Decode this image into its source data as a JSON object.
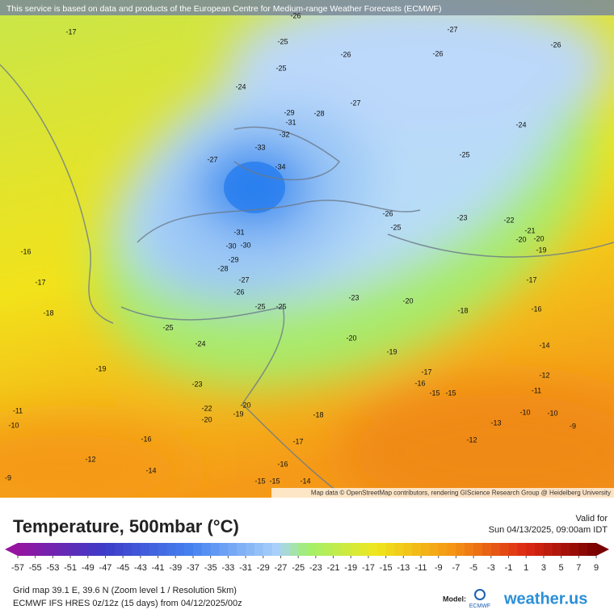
{
  "header": {
    "attribution": "This service is based on data and products of the European Centre for Medium-range Weather Forecasts (ECMWF)"
  },
  "map": {
    "credit": "Map data © OpenStreetMap contributors, rendering GIScience Research Group @ Heidelberg University",
    "contour_labels": [
      -26,
      -27,
      -17,
      -25,
      -26,
      -26,
      -26,
      -25,
      -24,
      -27,
      -29,
      -28,
      -31,
      -32,
      -24,
      -33,
      -27,
      -25,
      -34,
      -26,
      -25,
      -23,
      -22,
      -21,
      -20,
      -20,
      -19,
      -31,
      -30,
      -30,
      -29,
      -28,
      -16,
      -17,
      -27,
      -17,
      -26,
      -23,
      -20,
      -18,
      -16,
      -18,
      -25,
      -25,
      -25,
      -20,
      -24,
      -14,
      -19,
      -19,
      -17,
      -12,
      -16,
      -23,
      -11,
      -15,
      -15,
      -20,
      -22,
      -19,
      -18,
      -20,
      -11,
      -10,
      -10,
      -13,
      -10,
      -9,
      -12,
      -16,
      -17,
      -12,
      -16,
      -14,
      -9,
      -15,
      -15,
      -14
    ]
  },
  "legend": {
    "title": "Temperature, 500mbar (°C)",
    "valid_label": "Valid for",
    "valid_time": "Sun 04/13/2025, 09:00am IDT",
    "scale_ticks": [
      -57,
      -55,
      -53,
      -51,
      -49,
      -47,
      -45,
      -43,
      -41,
      -39,
      -37,
      -35,
      -33,
      -31,
      -29,
      -27,
      -25,
      -23,
      -21,
      -19,
      -17,
      -15,
      -13,
      -11,
      -9,
      -7,
      -5,
      -3,
      -1,
      1,
      3,
      5,
      7,
      9
    ]
  },
  "footer": {
    "grid": "Grid map 39.1 E, 39.6 N (Zoom level 1 / Resolution 5km)",
    "model_run": "ECMWF IFS HRES 0z/12z (15 days) from  04/12/2025/00z",
    "model_label": "Model:",
    "ecmwf": "ECMWF",
    "brand": "weather.us"
  }
}
